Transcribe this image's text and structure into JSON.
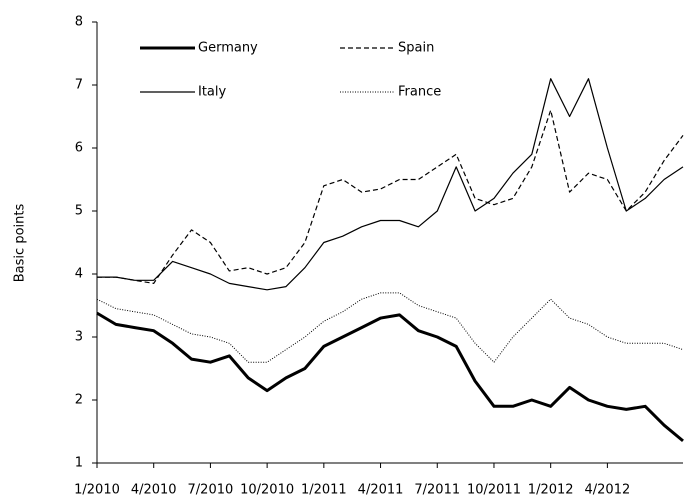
{
  "chart_data": {
    "type": "line",
    "ylabel": "Basic points",
    "categories": [
      "1/2010",
      null,
      null,
      "4/2010",
      null,
      null,
      "7/2010",
      null,
      null,
      "10/2010",
      null,
      null,
      "1/2011",
      null,
      null,
      "4/2011",
      null,
      null,
      "7/2011",
      null,
      null,
      "10/2011",
      null,
      null,
      "1/2012",
      null,
      null,
      "4/2012",
      null,
      null,
      null,
      null
    ],
    "series": [
      {
        "name": "Germany",
        "color": "#000000",
        "style": "solid",
        "width": 3,
        "values": [
          3.38,
          3.2,
          3.15,
          3.1,
          2.9,
          2.65,
          2.6,
          2.7,
          2.35,
          2.15,
          2.35,
          2.5,
          2.85,
          3.0,
          3.15,
          3.3,
          3.35,
          3.1,
          3.0,
          2.85,
          2.3,
          1.9,
          1.9,
          2.0,
          1.9,
          2.2,
          2.0,
          1.9,
          1.85,
          1.9,
          1.6,
          1.35
        ]
      },
      {
        "name": "Spain",
        "color": "#000000",
        "style": "dashed",
        "width": 1.2,
        "values": [
          3.95,
          3.95,
          3.9,
          3.85,
          4.3,
          4.7,
          4.5,
          4.05,
          4.1,
          4.0,
          4.1,
          4.5,
          5.4,
          5.5,
          5.3,
          5.35,
          5.5,
          5.5,
          5.7,
          5.9,
          5.2,
          5.1,
          5.2,
          5.7,
          6.6,
          5.3,
          5.6,
          5.5,
          5.0,
          5.3,
          5.8,
          6.2
        ]
      },
      {
        "name": "Italy",
        "color": "#000000",
        "style": "solid",
        "width": 1.2,
        "values": [
          3.95,
          3.95,
          3.9,
          3.9,
          4.2,
          4.1,
          4.0,
          3.85,
          3.8,
          3.75,
          3.8,
          4.1,
          4.5,
          4.6,
          4.75,
          4.85,
          4.85,
          4.75,
          5.0,
          5.7,
          5.0,
          5.2,
          5.6,
          5.9,
          7.1,
          6.5,
          7.1,
          6.0,
          5.0,
          5.2,
          5.5,
          5.7
        ]
      },
      {
        "name": "France",
        "color": "#000000",
        "style": "dotted",
        "width": 1,
        "values": [
          3.6,
          3.45,
          3.4,
          3.35,
          3.2,
          3.05,
          3.0,
          2.9,
          2.6,
          2.6,
          2.8,
          3.0,
          3.25,
          3.4,
          3.6,
          3.7,
          3.7,
          3.5,
          3.4,
          3.3,
          2.9,
          2.6,
          3.0,
          3.3,
          3.6,
          3.3,
          3.2,
          3.0,
          2.9,
          2.9,
          2.9,
          2.8
        ]
      }
    ],
    "ylim": [
      1,
      8
    ],
    "yticks": [
      1,
      2,
      3,
      4,
      5,
      6,
      7,
      8
    ],
    "grid": false,
    "legend": "top-left"
  }
}
